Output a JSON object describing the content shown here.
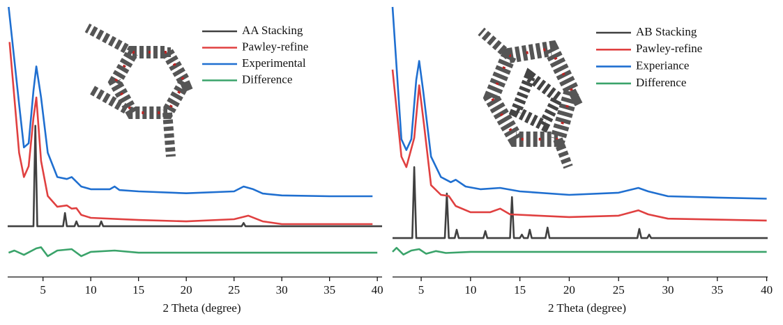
{
  "chart_data": [
    {
      "type": "line",
      "x_label": "2 Theta (degree)",
      "xlim": [
        1.3,
        40.5
      ],
      "ylim": [
        0,
        100
      ],
      "xticks": [
        5,
        10,
        15,
        20,
        25,
        30,
        35,
        40
      ],
      "series": [
        {
          "name": "AA Stacking",
          "color": "#404040",
          "x": [
            1.3,
            4.0,
            4.2,
            4.4,
            7.1,
            7.3,
            7.5,
            8.3,
            8.5,
            8.7,
            10.9,
            11.1,
            11.3,
            25.8,
            26.0,
            26.2,
            40.5
          ],
          "values": [
            18.8,
            18.8,
            56,
            18.8,
            18.8,
            23.7,
            18.8,
            18.8,
            20.6,
            18.8,
            18.8,
            20.6,
            18.8,
            18.8,
            20,
            18.8,
            18.8
          ]
        },
        {
          "name": "Pawley-refine",
          "color": "#e04040",
          "x": [
            1.5,
            2.5,
            3.0,
            3.5,
            4.0,
            4.3,
            4.8,
            5.5,
            6.5,
            7.5,
            8.0,
            8.5,
            9.0,
            10,
            15,
            20,
            25,
            26.5,
            28,
            30,
            35,
            39.5
          ],
          "values": [
            87,
            46,
            37,
            41,
            59,
            66.5,
            43,
            30,
            26,
            26.5,
            25.3,
            25.5,
            23,
            21.9,
            21.1,
            20.6,
            21.4,
            22.7,
            20.6,
            19.6,
            19.6,
            19.6
          ]
        },
        {
          "name": "Experimental",
          "color": "#1f6fd0",
          "x": [
            1.4,
            2.5,
            3.0,
            3.5,
            4.0,
            4.3,
            4.8,
            5.5,
            6.5,
            7.5,
            8.0,
            9.0,
            10,
            12,
            12.5,
            13,
            15,
            20,
            25,
            26,
            27,
            28,
            30,
            35,
            39.5
          ],
          "values": [
            100,
            64,
            48,
            49.5,
            69,
            78,
            66.5,
            46,
            37,
            36.3,
            37,
            33.5,
            32.5,
            32.5,
            33.5,
            32.2,
            31.7,
            31,
            31.7,
            33.5,
            32.5,
            30.9,
            30.2,
            29.9,
            29.9
          ]
        },
        {
          "name": "Difference",
          "color": "#3aa36a",
          "x": [
            1.4,
            2,
            3,
            4.3,
            4.8,
            5.5,
            6.5,
            8,
            9,
            10,
            12.5,
            15,
            40
          ],
          "values": [
            9,
            9.8,
            8.2,
            10.6,
            11,
            7.7,
            9.8,
            10.3,
            7.7,
            9.3,
            9.8,
            9,
            9
          ]
        }
      ]
    },
    {
      "type": "line",
      "x_label": "2 Theta (degree)",
      "xlim": [
        2.1,
        40.1
      ],
      "ylim": [
        0,
        100
      ],
      "xticks": [
        5,
        10,
        15,
        20,
        25,
        30,
        35,
        40
      ],
      "series": [
        {
          "name": "AB Stacking",
          "color": "#404040",
          "x": [
            2.1,
            4.1,
            4.3,
            4.5,
            7.4,
            7.6,
            7.8,
            8.4,
            8.6,
            8.8,
            11.3,
            11.5,
            11.7,
            14.0,
            14.2,
            14.4,
            15.0,
            15.2,
            15.4,
            15.8,
            16.0,
            16.2,
            17.6,
            17.8,
            18.0,
            26.9,
            27.1,
            27.3,
            27.9,
            28.1,
            28.3,
            40.1
          ],
          "values": [
            14.4,
            14.4,
            40.7,
            14.4,
            14.4,
            30.9,
            14.4,
            14.4,
            17.5,
            14.4,
            14.4,
            17,
            14.4,
            14.4,
            29.6,
            14.4,
            14.4,
            15.7,
            14.4,
            14.4,
            17.5,
            14.4,
            14.4,
            18.3,
            14.4,
            14.4,
            17.8,
            14.4,
            14.4,
            15.7,
            14.4,
            14.4
          ]
        },
        {
          "name": "Pawley-refine",
          "color": "#e04040",
          "x": [
            2.1,
            3.0,
            3.5,
            4.3,
            4.8,
            5.3,
            6.0,
            7.0,
            7.8,
            8.5,
            10,
            12,
            13,
            14,
            20,
            25,
            27,
            28,
            30,
            40
          ],
          "values": [
            76.8,
            44.6,
            40.7,
            51.5,
            71,
            56,
            34,
            30.4,
            30,
            26.3,
            24,
            24,
            25.3,
            23.2,
            22.2,
            22.7,
            24.7,
            23.2,
            21.6,
            20.9
          ]
        },
        {
          "name": "Experiance",
          "color": "#1f6fd0",
          "x": [
            2.1,
            3.0,
            3.5,
            4.0,
            4.5,
            4.8,
            5.2,
            6.0,
            7.0,
            8.0,
            8.5,
            9.5,
            11,
            13,
            15,
            20,
            25,
            27,
            28,
            30,
            35,
            40
          ],
          "values": [
            100,
            51,
            47,
            51,
            73,
            80,
            69,
            44.6,
            37,
            35.1,
            36,
            33.5,
            32.5,
            33,
            31.7,
            30.4,
            31.2,
            33,
            31.7,
            29.9,
            29.4,
            29
          ]
        },
        {
          "name": "Difference",
          "color": "#3aa36a",
          "x": [
            2.1,
            2.5,
            3.2,
            4.0,
            4.8,
            5.5,
            6.5,
            7.5,
            10,
            40
          ],
          "values": [
            9.3,
            10.8,
            8.3,
            9.8,
            10.3,
            8.6,
            9.6,
            8.9,
            9.3,
            9.3
          ]
        }
      ]
    }
  ]
}
